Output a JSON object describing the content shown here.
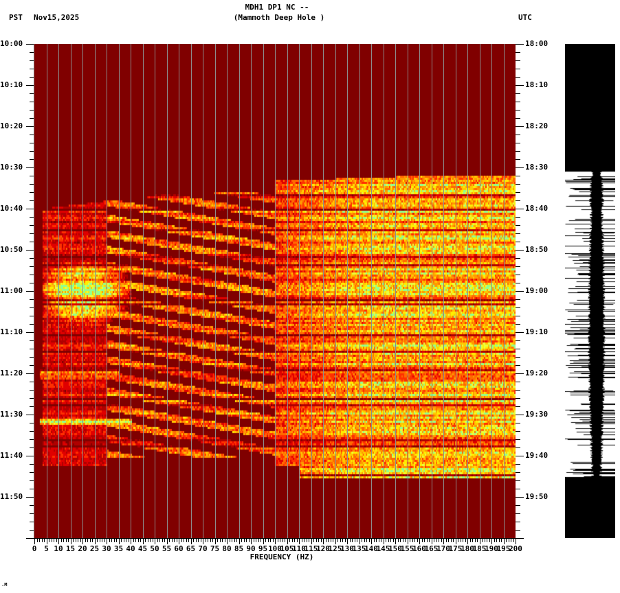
{
  "header": {
    "title_line1": "MDH1 DP1 NC --",
    "title_line2": "(Mammoth Deep Hole )",
    "left_timezone": "PST",
    "date": "Nov15,2025",
    "right_timezone": "UTC"
  },
  "footer": {
    "mark": ".M"
  },
  "colors": {
    "background": "#800000",
    "gridline": "#8c8c8c",
    "colormap": [
      "#800000",
      "#b00000",
      "#e00000",
      "#ff3000",
      "#ff6a00",
      "#ff9a00",
      "#ffc800",
      "#ffee00",
      "#e8ff40",
      "#90ff90"
    ],
    "seismogram": "#000000"
  },
  "chart_data": {
    "type": "heatmap",
    "title": "MDH1 DP1 NC -- (Mammoth Deep Hole )",
    "xlabel": "FREQUENCY (HZ)",
    "ylabel_left": "PST",
    "ylabel_right": "UTC",
    "xlim": [
      0,
      200
    ],
    "x_ticks": [
      "0",
      "5",
      "10",
      "15",
      "20",
      "25",
      "30",
      "35",
      "40",
      "45",
      "50",
      "55",
      "60",
      "65",
      "70",
      "75",
      "80",
      "85",
      "90",
      "95",
      "100",
      "105",
      "110",
      "115",
      "120",
      "125",
      "130",
      "135",
      "140",
      "145",
      "150",
      "155",
      "160",
      "165",
      "170",
      "175",
      "180",
      "185",
      "190",
      "195",
      "200"
    ],
    "y_ticks_left": [
      "10:00",
      "10:10",
      "10:20",
      "10:30",
      "10:40",
      "10:50",
      "11:00",
      "11:10",
      "11:20",
      "11:30",
      "11:40",
      "11:50"
    ],
    "y_ticks_right": [
      "18:00",
      "18:10",
      "18:20",
      "18:30",
      "18:40",
      "18:50",
      "19:00",
      "19:10",
      "19:20",
      "19:30",
      "19:40",
      "19:50"
    ],
    "time_span_minutes": 120,
    "grid": "vertical lines every 5 Hz",
    "activity": {
      "onset_minute_high_freq": 31,
      "onset_minute_low_freq": 35,
      "end_minute": 105,
      "description": "Broadband energy from ~10:31 to ~11:45 PST; strongest above 100 Hz; low-frequency (3-40 Hz) burst centered ~11:00 PST; diagonal gliding bands 30-130 Hz; narrow horizontal band at ~11:31 PST from 2-40 Hz"
    },
    "regions": [
      {
        "name": "high-freq-broadband",
        "f0": 100,
        "f1": 200,
        "t0": 32,
        "t1": 105,
        "intensity": 0.75
      },
      {
        "name": "mid-freq-bands",
        "f0": 30,
        "f1": 100,
        "t0": 36,
        "t1": 100,
        "intensity": 0.5
      },
      {
        "name": "low-freq-burst",
        "f0": 3,
        "f1": 40,
        "t0": 53,
        "t1": 72,
        "intensity": 0.85
      },
      {
        "name": "low-freq-scatter",
        "f0": 3,
        "f1": 30,
        "t0": 35,
        "t1": 102,
        "intensity": 0.3
      },
      {
        "name": "line-11-31",
        "f0": 2,
        "f1": 40,
        "t0": 91,
        "t1": 92,
        "intensity": 0.9
      },
      {
        "name": "line-11-20",
        "f0": 2,
        "f1": 35,
        "t0": 79,
        "t1": 81,
        "intensity": 0.7
      }
    ],
    "seismogram": {
      "saturated_until_minute": 31,
      "saturated_after_minute": 105,
      "note": "Trace saturated (solid black) before 10:31 and after 11:45 PST; variable-width waveform between"
    }
  }
}
